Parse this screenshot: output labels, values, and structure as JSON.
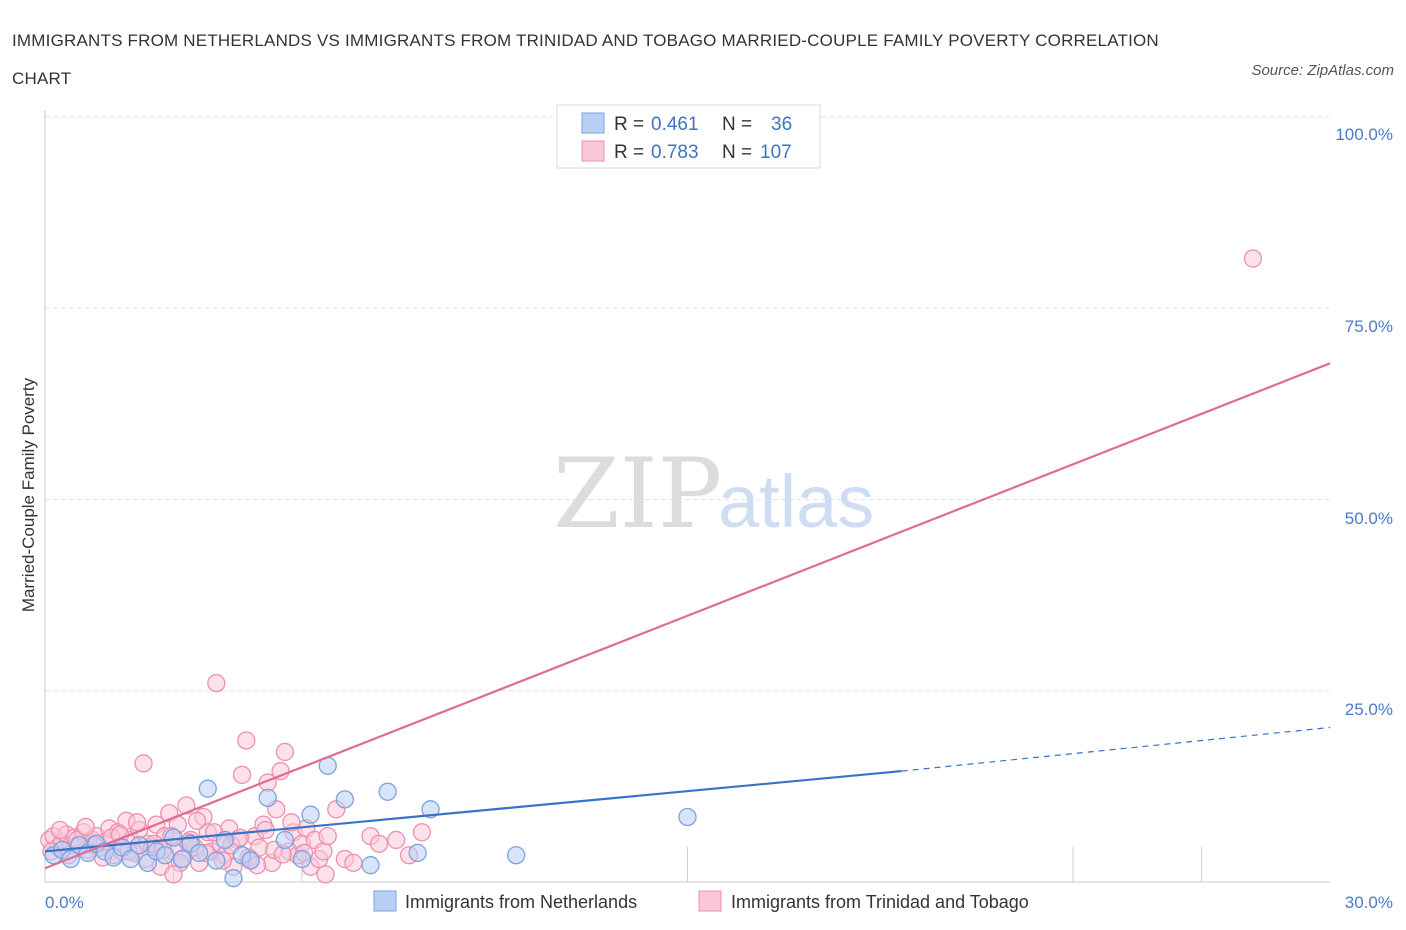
{
  "header": {
    "title": "IMMIGRANTS FROM NETHERLANDS VS IMMIGRANTS FROM TRINIDAD AND TOBAGO MARRIED-COUPLE FAMILY POVERTY CORRELATION CHART",
    "source": "Source: ZipAtlas.com"
  },
  "watermark": {
    "zip": "ZIP",
    "atlas": "atlas"
  },
  "legend": {
    "r_label": "R =",
    "n_label": "N =",
    "series": [
      {
        "r": "0.461",
        "n": "36"
      },
      {
        "r": "0.783",
        "n": "107"
      }
    ]
  },
  "colors": {
    "netherlands_fill": "#b8d0f4",
    "netherlands_stroke": "#7aa3e0",
    "netherlands_line": "#3a72c8",
    "trinidad_fill": "#f9c8d8",
    "trinidad_stroke": "#ee8fb0",
    "trinidad_line": "#e06b96"
  },
  "chart_data": {
    "type": "scatter",
    "title": "Immigrants from Netherlands vs Immigrants from Trinidad and Tobago Married-Couple Family Poverty Correlation Chart",
    "xlabel": "",
    "ylabel": "Married-Couple Family Poverty",
    "xlim": [
      0,
      30
    ],
    "ylim": [
      0,
      100
    ],
    "x_tick_labels": [
      "0.0%",
      "30.0%"
    ],
    "y_tick_labels": [
      "25.0%",
      "50.0%",
      "75.0%",
      "100.0%"
    ],
    "legend_position": "bottom",
    "series": [
      {
        "name": "Immigrants from Netherlands",
        "r": 0.461,
        "n": 36,
        "trend": {
          "x0": 0,
          "y0": 4.0,
          "x1": 20.0,
          "y1": 14.5,
          "dashed_to": {
            "x": 30,
            "y": 20.2
          }
        },
        "points": [
          [
            0.2,
            3.5
          ],
          [
            0.4,
            4.2
          ],
          [
            0.6,
            3.0
          ],
          [
            0.8,
            4.8
          ],
          [
            1.0,
            3.8
          ],
          [
            1.2,
            5.0
          ],
          [
            1.4,
            4.0
          ],
          [
            1.6,
            3.2
          ],
          [
            1.8,
            4.5
          ],
          [
            2.0,
            3.0
          ],
          [
            2.2,
            4.8
          ],
          [
            2.4,
            2.5
          ],
          [
            2.6,
            4.0
          ],
          [
            2.8,
            3.5
          ],
          [
            3.0,
            5.8
          ],
          [
            3.2,
            3.0
          ],
          [
            3.4,
            5.0
          ],
          [
            3.6,
            3.8
          ],
          [
            3.8,
            12.2
          ],
          [
            4.0,
            2.8
          ],
          [
            4.2,
            5.5
          ],
          [
            4.4,
            0.5
          ],
          [
            4.6,
            3.5
          ],
          [
            4.8,
            2.8
          ],
          [
            5.2,
            11.0
          ],
          [
            5.6,
            5.5
          ],
          [
            6.0,
            3.0
          ],
          [
            6.2,
            8.8
          ],
          [
            6.6,
            15.2
          ],
          [
            7.0,
            10.8
          ],
          [
            7.6,
            2.2
          ],
          [
            8.0,
            11.8
          ],
          [
            8.7,
            3.8
          ],
          [
            9.0,
            9.5
          ],
          [
            11.0,
            3.5
          ],
          [
            15.0,
            8.5
          ]
        ]
      },
      {
        "name": "Immigrants from Trinidad and Tobago",
        "r": 0.783,
        "n": 107,
        "trend": {
          "x0": 0,
          "y0": 1.8,
          "x1": 30,
          "y1": 67.8
        },
        "points": [
          [
            0.1,
            5.5
          ],
          [
            0.2,
            6.0
          ],
          [
            0.3,
            4.5
          ],
          [
            0.4,
            5.2
          ],
          [
            0.5,
            6.2
          ],
          [
            0.6,
            4.8
          ],
          [
            0.7,
            5.8
          ],
          [
            0.8,
            5.0
          ],
          [
            0.9,
            6.5
          ],
          [
            1.0,
            4.2
          ],
          [
            1.1,
            5.5
          ],
          [
            1.2,
            6.0
          ],
          [
            1.3,
            4.5
          ],
          [
            1.4,
            5.2
          ],
          [
            1.5,
            7.0
          ],
          [
            1.6,
            3.5
          ],
          [
            1.7,
            6.5
          ],
          [
            1.8,
            4.0
          ],
          [
            1.9,
            8.0
          ],
          [
            2.0,
            5.5
          ],
          [
            2.1,
            3.8
          ],
          [
            2.2,
            6.8
          ],
          [
            2.3,
            15.5
          ],
          [
            2.4,
            5.0
          ],
          [
            2.5,
            4.5
          ],
          [
            2.6,
            7.5
          ],
          [
            2.7,
            2.0
          ],
          [
            2.8,
            6.0
          ],
          [
            2.9,
            9.0
          ],
          [
            3.0,
            4.0
          ],
          [
            3.1,
            7.5
          ],
          [
            3.2,
            3.0
          ],
          [
            3.3,
            10.0
          ],
          [
            3.4,
            5.5
          ],
          [
            3.5,
            4.5
          ],
          [
            3.6,
            2.5
          ],
          [
            3.7,
            8.5
          ],
          [
            3.8,
            6.5
          ],
          [
            3.9,
            4.0
          ],
          [
            4.0,
            26.0
          ],
          [
            4.1,
            5.0
          ],
          [
            4.2,
            3.5
          ],
          [
            4.3,
            7.0
          ],
          [
            4.4,
            2.0
          ],
          [
            4.5,
            5.5
          ],
          [
            4.6,
            14.0
          ],
          [
            4.7,
            18.5
          ],
          [
            4.8,
            3.0
          ],
          [
            4.9,
            6.0
          ],
          [
            5.0,
            4.5
          ],
          [
            5.1,
            7.5
          ],
          [
            5.2,
            13.0
          ],
          [
            5.3,
            2.5
          ],
          [
            5.4,
            9.5
          ],
          [
            5.5,
            14.5
          ],
          [
            5.6,
            17.0
          ],
          [
            5.7,
            4.0
          ],
          [
            5.8,
            6.5
          ],
          [
            5.9,
            3.5
          ],
          [
            6.0,
            5.0
          ],
          [
            6.1,
            7.0
          ],
          [
            6.2,
            2.0
          ],
          [
            6.3,
            5.5
          ],
          [
            6.4,
            3.0
          ],
          [
            6.5,
            4.0
          ],
          [
            6.6,
            6.0
          ],
          [
            6.8,
            9.5
          ],
          [
            7.0,
            3.0
          ],
          [
            7.2,
            2.5
          ],
          [
            7.6,
            6.0
          ],
          [
            7.8,
            5.0
          ],
          [
            8.2,
            5.5
          ],
          [
            8.5,
            3.5
          ],
          [
            8.8,
            6.5
          ],
          [
            0.15,
            4.0
          ],
          [
            0.35,
            6.8
          ],
          [
            0.55,
            3.5
          ],
          [
            0.75,
            5.5
          ],
          [
            0.95,
            7.2
          ],
          [
            1.15,
            4.8
          ],
          [
            1.35,
            3.2
          ],
          [
            1.55,
            5.8
          ],
          [
            1.75,
            6.2
          ],
          [
            1.95,
            4.0
          ],
          [
            2.15,
            7.8
          ],
          [
            2.35,
            3.0
          ],
          [
            2.55,
            5.0
          ],
          [
            2.75,
            4.2
          ],
          [
            2.95,
            6.0
          ],
          [
            3.15,
            2.5
          ],
          [
            3.35,
            5.2
          ],
          [
            3.55,
            8.0
          ],
          [
            3.75,
            3.8
          ],
          [
            3.95,
            6.5
          ],
          [
            4.15,
            2.8
          ],
          [
            4.35,
            4.8
          ],
          [
            4.55,
            5.8
          ],
          [
            4.75,
            3.2
          ],
          [
            4.95,
            2.2
          ],
          [
            5.15,
            6.8
          ],
          [
            5.35,
            4.2
          ],
          [
            5.55,
            3.6
          ],
          [
            5.75,
            7.8
          ],
          [
            6.05,
            3.8
          ],
          [
            6.55,
            1.0
          ],
          [
            3.0,
            1.0
          ],
          [
            28.2,
            81.5
          ]
        ]
      }
    ]
  },
  "bottom_legend": {
    "items": [
      {
        "label": "Immigrants from Netherlands"
      },
      {
        "label": "Immigrants from Trinidad and Tobago"
      }
    ]
  }
}
